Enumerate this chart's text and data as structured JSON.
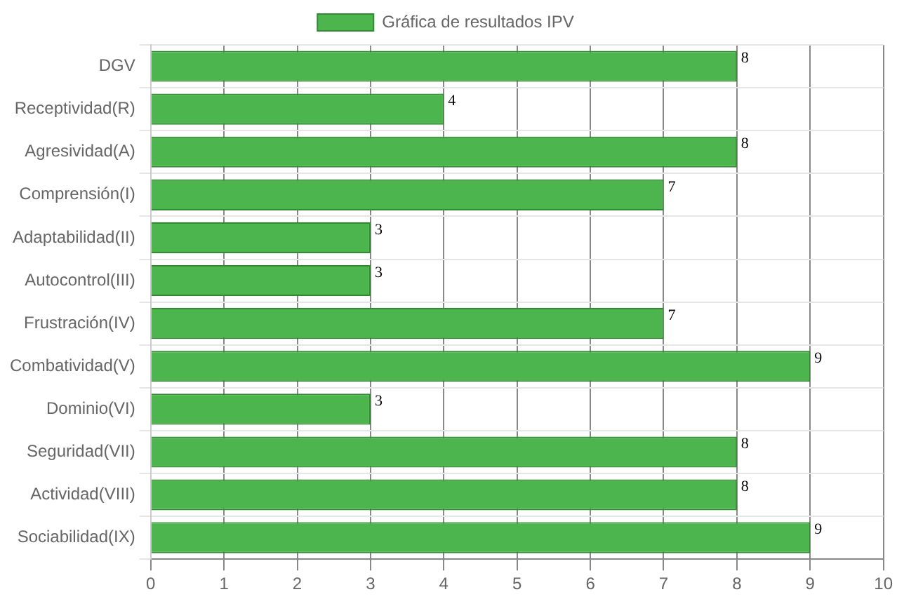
{
  "chart_data": {
    "type": "bar",
    "orientation": "horizontal",
    "categories": [
      "DGV",
      "Receptividad(R)",
      "Agresividad(A)",
      "Comprensión(I)",
      "Adaptabilidad(II)",
      "Autocontrol(III)",
      "Frustración(IV)",
      "Combatividad(V)",
      "Dominio(VI)",
      "Seguridad(VII)",
      "Actividad(VIII)",
      "Sociabilidad(IX)"
    ],
    "series": [
      {
        "name": "Gráfica de resultados IPV",
        "color": "#4db54d",
        "values": [
          8,
          4,
          8,
          7,
          3,
          3,
          7,
          9,
          3,
          8,
          8,
          9
        ]
      }
    ],
    "xlim": [
      0,
      10
    ],
    "xticks": [
      0,
      1,
      2,
      3,
      4,
      5,
      6,
      7,
      8,
      9,
      10
    ],
    "grid": true,
    "legend": "top",
    "data_labels": true
  }
}
